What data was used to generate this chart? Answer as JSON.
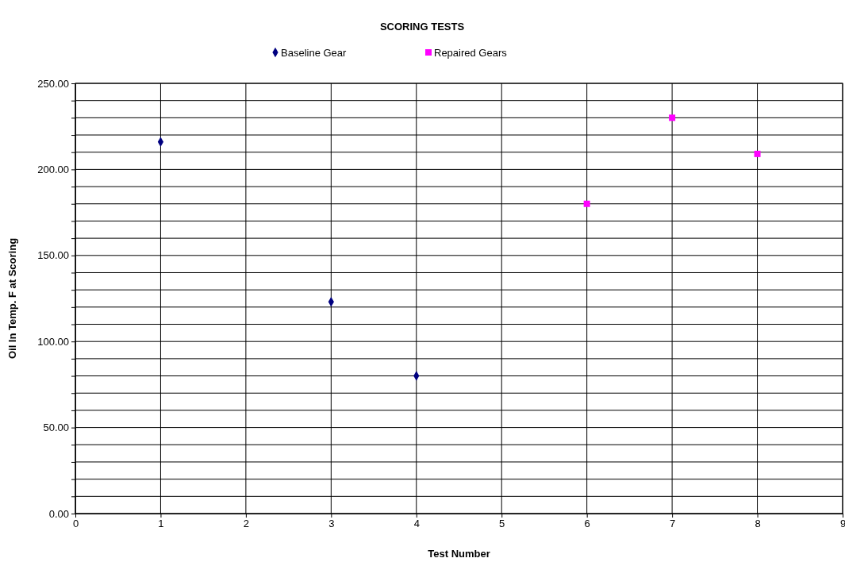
{
  "chart_data": {
    "type": "scatter",
    "title": "SCORING TESTS",
    "xlabel": "Test Number",
    "ylabel": "Oil In Temp. F at Scoring",
    "xlim": [
      0,
      9
    ],
    "xticks": [
      0,
      1,
      2,
      3,
      4,
      5,
      6,
      7,
      8,
      9
    ],
    "ylim": [
      0,
      250
    ],
    "yticks": [
      {
        "value": 0,
        "label": "0.00"
      },
      {
        "value": 10,
        "label": null
      },
      {
        "value": 20,
        "label": null
      },
      {
        "value": 30,
        "label": null
      },
      {
        "value": 40,
        "label": null
      },
      {
        "value": 50,
        "label": "50.00"
      },
      {
        "value": 60,
        "label": null
      },
      {
        "value": 70,
        "label": null
      },
      {
        "value": 80,
        "label": null
      },
      {
        "value": 90,
        "label": null
      },
      {
        "value": 100,
        "label": "100.00"
      },
      {
        "value": 110,
        "label": null
      },
      {
        "value": 120,
        "label": null
      },
      {
        "value": 130,
        "label": null
      },
      {
        "value": 140,
        "label": null
      },
      {
        "value": 150,
        "label": "150.00"
      },
      {
        "value": 160,
        "label": null
      },
      {
        "value": 170,
        "label": null
      },
      {
        "value": 180,
        "label": null
      },
      {
        "value": 190,
        "label": null
      },
      {
        "value": 200,
        "label": "200.00"
      },
      {
        "value": 210,
        "label": null
      },
      {
        "value": 220,
        "label": null
      },
      {
        "value": 230,
        "label": null
      },
      {
        "value": 240,
        "label": null
      },
      {
        "value": 250,
        "label": "250.00"
      }
    ],
    "grid": true,
    "legend": "top",
    "series": [
      {
        "name": "Baseline Gear",
        "color": "#000080",
        "marker": "diamond",
        "x": [
          1,
          3,
          4
        ],
        "values": [
          216,
          123,
          80
        ]
      },
      {
        "name": "Repaired Gears",
        "color": "#ff00ff",
        "marker": "square",
        "x": [
          6,
          7,
          8
        ],
        "values": [
          180,
          230,
          209
        ]
      }
    ]
  }
}
